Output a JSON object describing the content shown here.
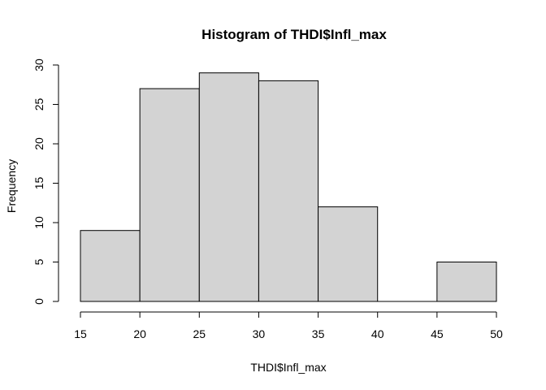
{
  "chart_data": {
    "type": "bar",
    "title": "Histogram of THDI$Infl_max",
    "xlabel": "THDI$Infl_max",
    "ylabel": "Frequency",
    "bins": [
      {
        "start": 15,
        "end": 20,
        "count": 9
      },
      {
        "start": 20,
        "end": 25,
        "count": 27
      },
      {
        "start": 25,
        "end": 30,
        "count": 29
      },
      {
        "start": 30,
        "end": 35,
        "count": 28
      },
      {
        "start": 35,
        "end": 40,
        "count": 12
      },
      {
        "start": 40,
        "end": 45,
        "count": 0
      },
      {
        "start": 45,
        "end": 50,
        "count": 5
      }
    ],
    "xlim": [
      15,
      50
    ],
    "ylim": [
      0,
      30
    ],
    "x_ticks": [
      "15",
      "20",
      "25",
      "30",
      "35",
      "40",
      "45",
      "50"
    ],
    "y_ticks": [
      "0",
      "5",
      "10",
      "15",
      "20",
      "25",
      "30"
    ],
    "bar_fill": "#d3d3d3",
    "bar_stroke": "#000000",
    "grid": false,
    "legend": "none"
  }
}
